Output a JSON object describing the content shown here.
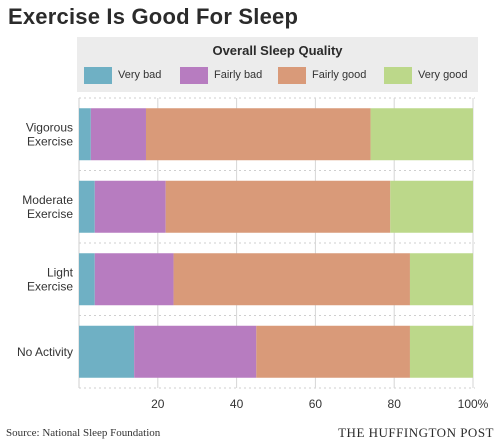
{
  "chart_data": {
    "type": "bar",
    "orientation": "horizontal",
    "stacked": true,
    "title": "Exercise Is Good For Sleep",
    "legend_title": "Overall Sleep Quality",
    "categories": [
      {
        "label": "Vigorous Exercise",
        "lines": [
          "Vigorous",
          "Exercise"
        ]
      },
      {
        "label": "Moderate Exercise",
        "lines": [
          "Moderate",
          "Exercise"
        ]
      },
      {
        "label": "Light Exercise",
        "lines": [
          "Light",
          "Exercise"
        ]
      },
      {
        "label": "No Activity",
        "lines": [
          "No Activity"
        ]
      }
    ],
    "series": [
      {
        "name": "Very bad",
        "color": "#6fb0c4",
        "values": [
          3,
          4,
          4,
          14
        ]
      },
      {
        "name": "Fairly bad",
        "color": "#b77cc0",
        "values": [
          14,
          18,
          20,
          31
        ]
      },
      {
        "name": "Fairly good",
        "color": "#d99a79",
        "values": [
          57,
          57,
          60,
          39
        ]
      },
      {
        "name": "Very good",
        "color": "#bcd88a",
        "values": [
          26,
          21,
          16,
          16
        ]
      }
    ],
    "xlim": [
      0,
      100
    ],
    "xticks": [
      {
        "value": 20,
        "label": "20"
      },
      {
        "value": 40,
        "label": "40"
      },
      {
        "value": 60,
        "label": "60"
      },
      {
        "value": 80,
        "label": "80"
      },
      {
        "value": 100,
        "label": "100%"
      }
    ],
    "grid": true,
    "legend_position": "top"
  },
  "footer": {
    "source": "Source: National Sleep Foundation",
    "publisher": "THE HUFFINGTON POST"
  }
}
